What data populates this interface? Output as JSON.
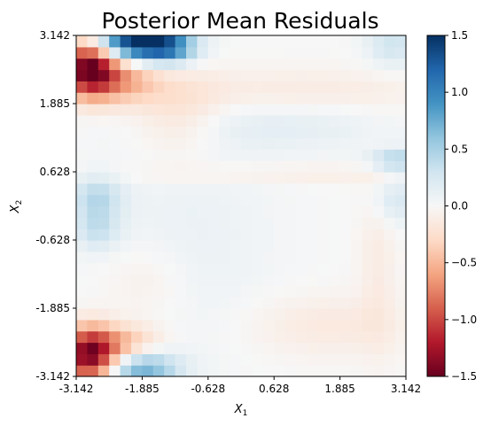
{
  "chart_data": {
    "type": "heatmap",
    "title": "Posterior Mean Residuals",
    "xlabel": "X",
    "xlabel_sub": "1",
    "ylabel": "X",
    "ylabel_sub": "2",
    "xlim": [
      -3.142,
      3.142
    ],
    "ylim": [
      -3.142,
      3.142
    ],
    "xticks": [
      "-3.142",
      "-1.885",
      "-0.628",
      "0.628",
      "1.885",
      "3.142"
    ],
    "yticks": [
      "-3.142",
      "-1.885",
      "-0.628",
      "0.628",
      "1.885",
      "3.142"
    ],
    "colorbar": {
      "vmin": -1.5,
      "vmax": 1.5,
      "ticks": [
        "−1.5",
        "−1.0",
        "−0.5",
        "0.0",
        "0.5",
        "1.0",
        "1.5"
      ],
      "colormap": "RdBu"
    },
    "grid": false,
    "resolution": 30,
    "features": [
      {
        "cx": -1.95,
        "cy": 3.05,
        "sx": 0.55,
        "sy": 0.25,
        "amp": 1.55
      },
      {
        "cx": -1.35,
        "cy": 2.9,
        "sx": 0.35,
        "sy": 0.2,
        "amp": 0.6
      },
      {
        "cx": -2.9,
        "cy": 2.55,
        "sx": 0.35,
        "sy": 0.35,
        "amp": -1.45
      },
      {
        "cx": -2.3,
        "cy": 2.35,
        "sx": 0.5,
        "sy": 0.3,
        "amp": -0.55
      },
      {
        "cx": -2.9,
        "cy": -2.75,
        "sx": 0.35,
        "sy": 0.35,
        "amp": -1.4
      },
      {
        "cx": -2.25,
        "cy": -2.55,
        "sx": 0.5,
        "sy": 0.25,
        "amp": -0.5
      },
      {
        "cx": -1.9,
        "cy": -3.0,
        "sx": 0.5,
        "sy": 0.25,
        "amp": 0.75
      },
      {
        "cx": -2.75,
        "cy": 0.15,
        "sx": 0.35,
        "sy": 0.3,
        "amp": 0.4
      },
      {
        "cx": -2.75,
        "cy": -0.45,
        "sx": 0.3,
        "sy": 0.25,
        "amp": 0.3
      },
      {
        "cx": 2.95,
        "cy": 0.85,
        "sx": 0.35,
        "sy": 0.15,
        "amp": 0.45
      },
      {
        "cx": 2.95,
        "cy": 0.1,
        "sx": 0.3,
        "sy": 0.3,
        "amp": 0.25
      },
      {
        "cx": 2.9,
        "cy": 3.0,
        "sx": 0.35,
        "sy": 0.3,
        "amp": 0.3
      },
      {
        "cx": -1.2,
        "cy": 1.7,
        "sx": 0.6,
        "sy": 0.6,
        "amp": -0.22
      },
      {
        "cx": 0.8,
        "cy": 1.5,
        "sx": 1.6,
        "sy": 0.35,
        "amp": 0.15
      },
      {
        "cx": 1.0,
        "cy": 2.1,
        "sx": 2.0,
        "sy": 0.3,
        "amp": -0.15
      },
      {
        "cx": 1.6,
        "cy": -2.2,
        "sx": 1.1,
        "sy": 0.4,
        "amp": -0.15
      },
      {
        "cx": -1.0,
        "cy": -0.6,
        "sx": 1.2,
        "sy": 1.5,
        "amp": 0.1
      },
      {
        "cx": 0.5,
        "cy": 0.6,
        "sx": 2.5,
        "sy": 0.12,
        "amp": -0.12
      },
      {
        "cx": -1.8,
        "cy": -1.4,
        "sx": 0.6,
        "sy": 0.5,
        "amp": -0.12
      },
      {
        "cx": 2.6,
        "cy": -1.0,
        "sx": 0.25,
        "sy": 1.2,
        "amp": -0.12
      }
    ]
  }
}
